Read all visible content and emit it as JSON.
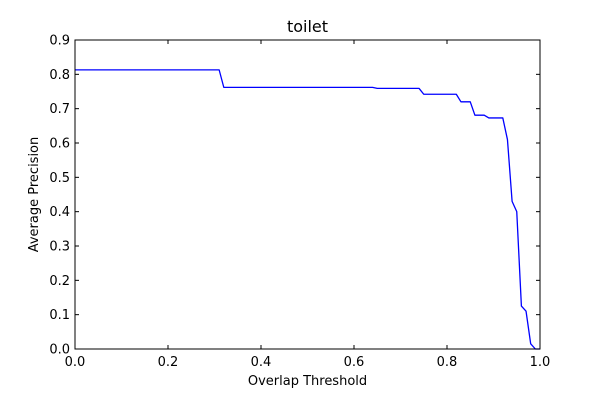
{
  "chart_data": {
    "type": "line",
    "title": "toilet",
    "xlabel": "Overlap Threshold",
    "ylabel": "Average Precision",
    "xlim": [
      0.0,
      1.0
    ],
    "ylim": [
      0.0,
      0.9
    ],
    "x_ticks": [
      "0.0",
      "0.2",
      "0.4",
      "0.6",
      "0.8",
      "1.0"
    ],
    "y_ticks": [
      "0.0",
      "0.1",
      "0.2",
      "0.3",
      "0.4",
      "0.5",
      "0.6",
      "0.7",
      "0.8",
      "0.9"
    ],
    "grid": false,
    "line_color": "#0000ff",
    "series": [
      {
        "x": [
          0.0,
          0.31,
          0.32,
          0.64,
          0.65,
          0.74,
          0.75,
          0.82,
          0.83,
          0.85,
          0.86,
          0.88,
          0.89,
          0.92,
          0.93,
          0.94,
          0.95,
          0.96,
          0.97,
          0.98,
          0.99,
          1.0
        ],
        "y": [
          0.813,
          0.813,
          0.762,
          0.762,
          0.759,
          0.759,
          0.742,
          0.742,
          0.72,
          0.72,
          0.681,
          0.681,
          0.673,
          0.673,
          0.61,
          0.43,
          0.4,
          0.125,
          0.11,
          0.015,
          0.0,
          0.0
        ]
      }
    ]
  }
}
